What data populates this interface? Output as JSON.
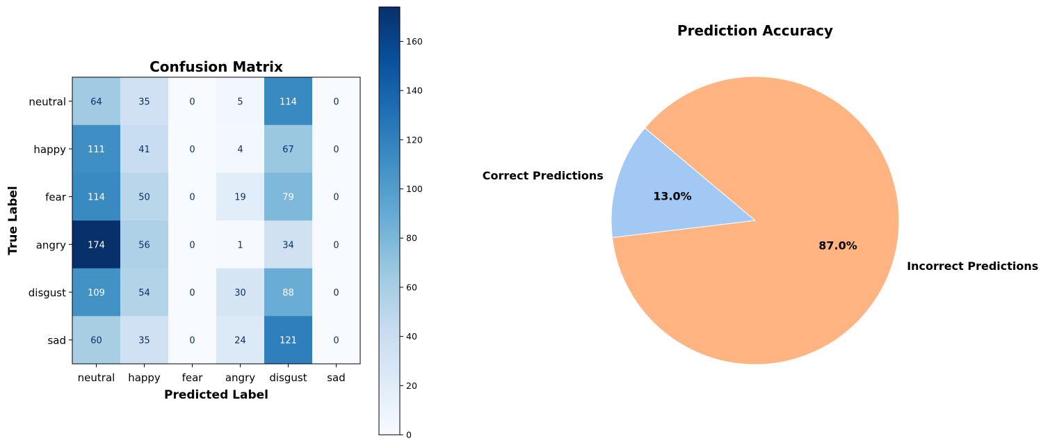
{
  "chart_data": [
    {
      "type": "heatmap",
      "title": "Confusion Matrix",
      "xlabel": "Predicted Label",
      "ylabel": "True Label",
      "x_categories": [
        "neutral",
        "happy",
        "fear",
        "angry",
        "disgust",
        "sad"
      ],
      "y_categories": [
        "neutral",
        "happy",
        "fear",
        "angry",
        "disgust",
        "sad"
      ],
      "values": [
        [
          64,
          35,
          0,
          5,
          114,
          0
        ],
        [
          111,
          41,
          0,
          4,
          67,
          0
        ],
        [
          114,
          50,
          0,
          19,
          79,
          0
        ],
        [
          174,
          56,
          0,
          1,
          34,
          0
        ],
        [
          109,
          54,
          0,
          30,
          88,
          0
        ],
        [
          60,
          35,
          0,
          24,
          121,
          0
        ]
      ],
      "colormap": "Blues",
      "colorbar": {
        "range": [
          0,
          174
        ],
        "ticks": [
          0,
          20,
          40,
          60,
          80,
          100,
          120,
          140,
          160
        ]
      }
    },
    {
      "type": "pie",
      "title": "Prediction Accuracy",
      "slices": [
        {
          "label": "Correct Predictions",
          "value": 13.0,
          "display": "13.0%",
          "color": "#a1c9f4"
        },
        {
          "label": "Incorrect Predictions",
          "value": 87.0,
          "display": "87.0%",
          "color": "#ffb482"
        }
      ]
    }
  ]
}
